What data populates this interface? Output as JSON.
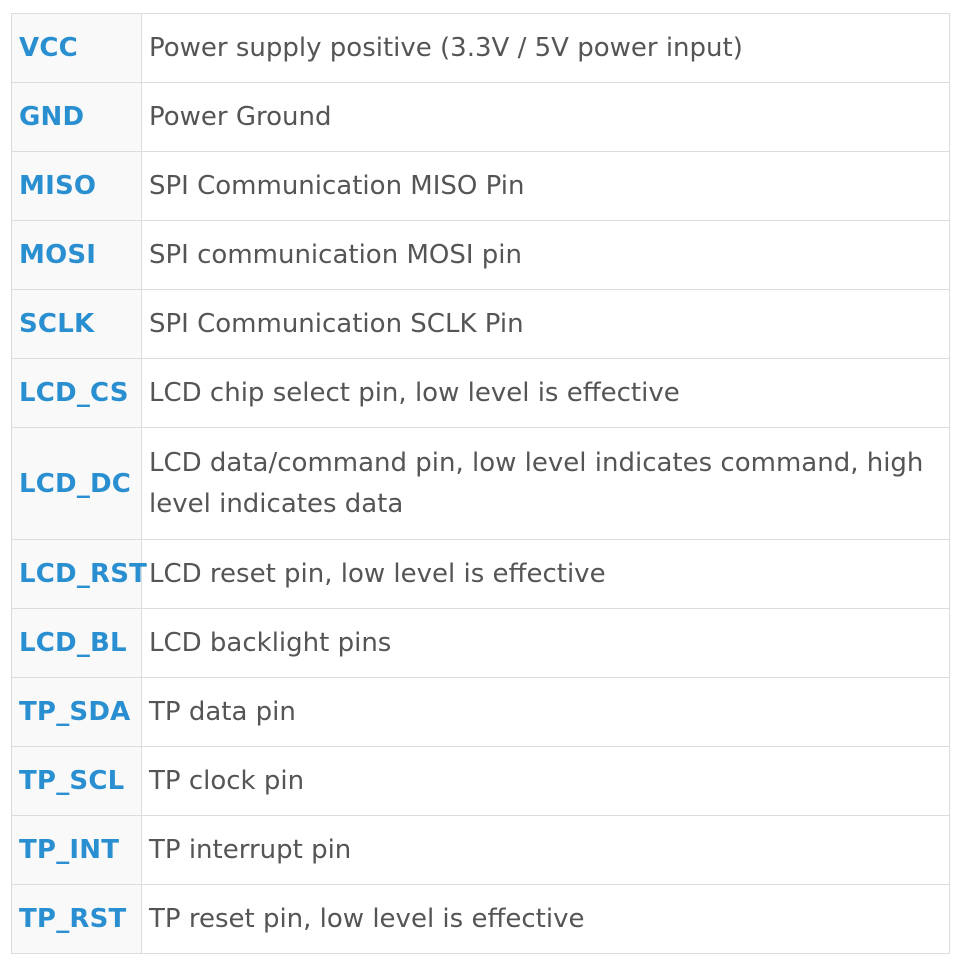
{
  "pins": [
    {
      "name": "VCC",
      "description": "Power supply positive (3.3V / 5V power input)"
    },
    {
      "name": "GND",
      "description": "Power Ground"
    },
    {
      "name": "MISO",
      "description": "SPI Communication MISO Pin"
    },
    {
      "name": "MOSI",
      "description": "SPI communication MOSI pin"
    },
    {
      "name": "SCLK",
      "description": "SPI Communication SCLK Pin"
    },
    {
      "name": "LCD_CS",
      "description": "LCD chip select pin, low level is effective"
    },
    {
      "name": "LCD_DC",
      "description": "LCD data/command pin, low level indicates command, high level indicates data"
    },
    {
      "name": "LCD_RST",
      "description": "LCD reset pin, low level is effective"
    },
    {
      "name": "LCD_BL",
      "description": "LCD backlight pins"
    },
    {
      "name": "TP_SDA",
      "description": "TP data pin"
    },
    {
      "name": "TP_SCL",
      "description": "TP clock pin"
    },
    {
      "name": "TP_INT",
      "description": "TP interrupt pin"
    },
    {
      "name": "TP_RST",
      "description": "TP reset pin, low level is effective"
    }
  ],
  "colors": {
    "pin_name": "#2a8fd0",
    "description_text": "#555555",
    "border": "#dcdcdc",
    "name_cell_background": "#f9f9f9"
  }
}
